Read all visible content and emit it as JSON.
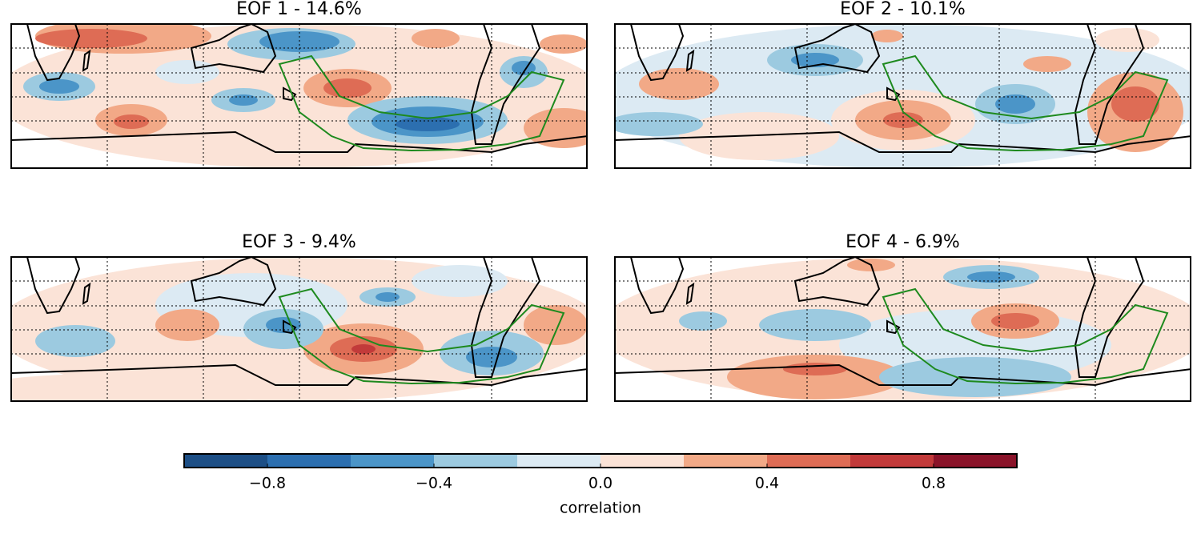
{
  "panels": [
    {
      "title": "EOF 1 - 14.6%"
    },
    {
      "title": "EOF 2 - 10.1%"
    },
    {
      "title": "EOF 3 - 9.4%"
    },
    {
      "title": "EOF 4 - 6.9%"
    }
  ],
  "colorbar": {
    "label": "correlation",
    "boundaries": [
      -1,
      -0.8,
      -0.6,
      -0.4,
      -0.2,
      0,
      0.2,
      0.4,
      0.6,
      0.8,
      1
    ],
    "colors": [
      "#1d4f86",
      "#2c6fb0",
      "#4b95c8",
      "#9ccae0",
      "#dceaf3",
      "#fbe3d7",
      "#f2a987",
      "#de6c55",
      "#c23a3a",
      "#8a1329"
    ],
    "ticks": [
      {
        "value": -0.8,
        "label": "−0.8"
      },
      {
        "value": -0.4,
        "label": "−0.4"
      },
      {
        "value": 0,
        "label": "0.0"
      },
      {
        "value": 0.4,
        "label": "0.4"
      },
      {
        "value": 0.8,
        "label": "0.8"
      }
    ]
  }
}
